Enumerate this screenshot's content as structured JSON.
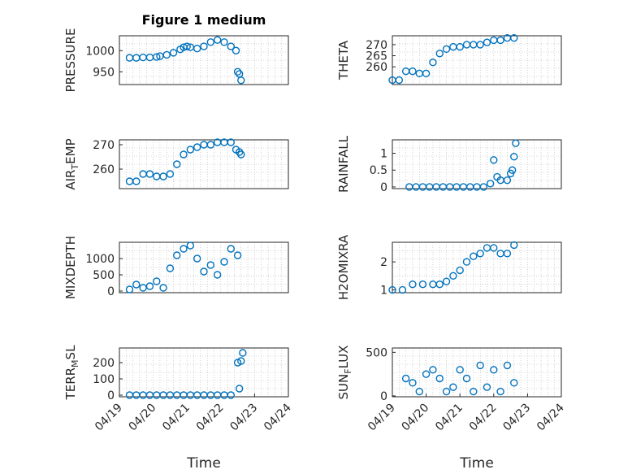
{
  "colors": {
    "marker": "#0072BD",
    "axis": "#262626",
    "grid": "#b3b3b3"
  },
  "figure_title": "Figure 1 medium",
  "chart_data": [
    {
      "type": "scatter",
      "ylabel": "PRESSURE",
      "ylim": [
        920,
        1035
      ],
      "yticks": [
        950,
        1000
      ],
      "xlim": [
        0,
        5
      ],
      "grid": "dotted",
      "show_xticklabels": false,
      "x": [
        0.3,
        0.5,
        0.7,
        0.9,
        1.1,
        1.2,
        1.4,
        1.6,
        1.8,
        1.9,
        2.0,
        2.1,
        2.3,
        2.5,
        2.7,
        2.9,
        3.1,
        3.3,
        3.45,
        3.5,
        3.55,
        3.6
      ],
      "y": [
        983,
        983,
        984,
        984,
        985,
        987,
        990,
        995,
        1003,
        1008,
        1010,
        1008,
        1005,
        1010,
        1020,
        1025,
        1020,
        1010,
        1000,
        950,
        945,
        930
      ]
    },
    {
      "type": "scatter",
      "ylabel": "THETA",
      "ylim": [
        252,
        274
      ],
      "yticks": [
        260,
        265,
        270
      ],
      "xlim": [
        0,
        5
      ],
      "grid": "dotted",
      "show_xticklabels": false,
      "x": [
        0.0,
        0.2,
        0.4,
        0.6,
        0.8,
        1.0,
        1.2,
        1.4,
        1.6,
        1.8,
        2.0,
        2.2,
        2.4,
        2.6,
        2.8,
        3.0,
        3.2,
        3.4,
        3.6
      ],
      "y": [
        254,
        254,
        258,
        258,
        257,
        257,
        262,
        266,
        268,
        269,
        269,
        270,
        270,
        270,
        271,
        272,
        272,
        273,
        273
      ]
    },
    {
      "type": "scatter",
      "ylabel": "AIR_TEMP",
      "ylim": [
        252,
        272
      ],
      "yticks": [
        260,
        270
      ],
      "xlim": [
        0,
        5
      ],
      "grid": "dotted",
      "show_xticklabels": false,
      "x": [
        0.3,
        0.5,
        0.7,
        0.9,
        1.1,
        1.3,
        1.5,
        1.7,
        1.9,
        2.1,
        2.3,
        2.5,
        2.7,
        2.9,
        3.1,
        3.3,
        3.45,
        3.55,
        3.6
      ],
      "y": [
        255,
        255,
        258,
        258,
        257,
        257,
        258,
        262,
        266,
        268,
        269,
        270,
        270,
        271,
        271,
        271,
        268,
        267,
        266
      ]
    },
    {
      "type": "scatter",
      "ylabel": "RAINFALL",
      "ylim": [
        -0.05,
        1.4
      ],
      "yticks": [
        0,
        0.5,
        1
      ],
      "xlim": [
        0,
        5
      ],
      "grid": "dotted",
      "show_xticklabels": false,
      "x": [
        0.5,
        0.7,
        0.9,
        1.1,
        1.3,
        1.5,
        1.7,
        1.9,
        2.1,
        2.3,
        2.5,
        2.7,
        2.9,
        3.0,
        3.1,
        3.2,
        3.4,
        3.5,
        3.55,
        3.6,
        3.65
      ],
      "y": [
        0,
        0,
        0,
        0,
        0,
        0,
        0,
        0,
        0,
        0,
        0,
        0,
        0.1,
        0.8,
        0.3,
        0.2,
        0.2,
        0.4,
        0.5,
        0.9,
        1.3
      ]
    },
    {
      "type": "scatter",
      "ylabel": "MIXDEPTH",
      "ylim": [
        -50,
        1500
      ],
      "yticks": [
        0,
        500,
        1000
      ],
      "xlim": [
        0,
        5
      ],
      "grid": "dotted",
      "show_xticklabels": false,
      "x": [
        0.3,
        0.5,
        0.7,
        0.9,
        1.1,
        1.3,
        1.5,
        1.7,
        1.9,
        2.1,
        2.3,
        2.5,
        2.7,
        2.9,
        3.1,
        3.3,
        3.5
      ],
      "y": [
        50,
        200,
        100,
        150,
        300,
        100,
        700,
        1100,
        1300,
        1400,
        1000,
        600,
        800,
        500,
        900,
        1300,
        1100
      ]
    },
    {
      "type": "scatter",
      "ylabel": "H2OMIXRA",
      "ylim": [
        0.9,
        2.7
      ],
      "yticks": [
        1,
        2
      ],
      "xlim": [
        0,
        5
      ],
      "grid": "dotted",
      "show_xticklabels": false,
      "x": [
        0.0,
        0.3,
        0.6,
        0.9,
        1.2,
        1.4,
        1.6,
        1.8,
        2.0,
        2.2,
        2.4,
        2.6,
        2.8,
        3.0,
        3.2,
        3.4,
        3.6
      ],
      "y": [
        1.0,
        1.0,
        1.2,
        1.2,
        1.2,
        1.2,
        1.3,
        1.5,
        1.7,
        2.0,
        2.2,
        2.3,
        2.5,
        2.5,
        2.3,
        2.3,
        2.6
      ]
    },
    {
      "type": "scatter",
      "ylabel": "TERR_MSL",
      "ylim": [
        -10,
        290
      ],
      "yticks": [
        0,
        100,
        200
      ],
      "xlim": [
        0,
        5
      ],
      "xticks": [
        0,
        1,
        2,
        3,
        4,
        5
      ],
      "xticklabels": [
        "04/19",
        "04/20",
        "04/21",
        "04/22",
        "04/23",
        "04/24"
      ],
      "xlabel": "Time",
      "grid": "dotted",
      "show_xticklabels": true,
      "x": [
        0.3,
        0.5,
        0.7,
        0.9,
        1.1,
        1.3,
        1.5,
        1.7,
        1.9,
        2.1,
        2.3,
        2.5,
        2.7,
        2.9,
        3.1,
        3.3,
        3.5,
        3.55,
        3.6,
        3.65
      ],
      "y": [
        0,
        0,
        0,
        0,
        0,
        0,
        0,
        0,
        0,
        0,
        0,
        0,
        0,
        0,
        0,
        0,
        200,
        40,
        210,
        260
      ]
    },
    {
      "type": "scatter",
      "ylabel": "SUN_FLUX",
      "ylim": [
        -10,
        550
      ],
      "yticks": [
        0,
        500
      ],
      "xlim": [
        0,
        5
      ],
      "xticks": [
        0,
        1,
        2,
        3,
        4,
        5
      ],
      "xticklabels": [
        "04/19",
        "04/20",
        "04/21",
        "04/22",
        "04/23",
        "04/24"
      ],
      "xlabel": "Time",
      "grid": "dotted",
      "show_xticklabels": true,
      "x": [
        0.4,
        0.6,
        0.8,
        1.0,
        1.2,
        1.4,
        1.6,
        1.8,
        2.0,
        2.2,
        2.4,
        2.6,
        2.8,
        3.0,
        3.2,
        3.4,
        3.6
      ],
      "y": [
        200,
        150,
        50,
        250,
        300,
        200,
        50,
        100,
        300,
        200,
        50,
        350,
        100,
        300,
        50,
        350,
        150
      ]
    }
  ]
}
